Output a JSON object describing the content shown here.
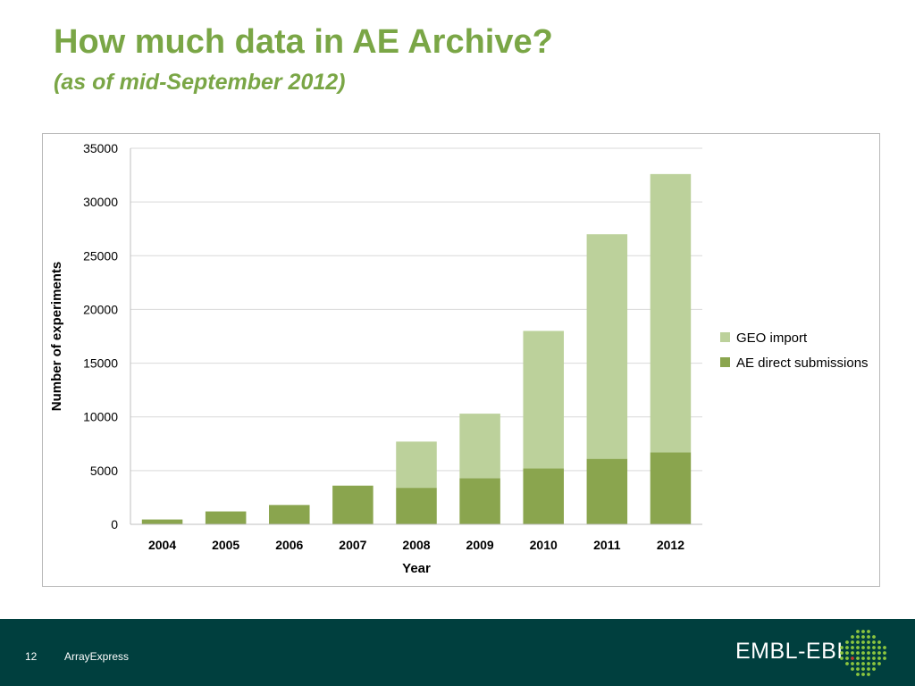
{
  "slide": {
    "title": "How much data in AE Archive?",
    "subtitle": "(as of mid-September 2012)"
  },
  "footer": {
    "page_number": "12",
    "label": "ArrayExpress",
    "logo_text": "EMBL-EBI",
    "background_color": "#003f3e"
  },
  "chart_data": {
    "type": "bar",
    "stacked": true,
    "title": "",
    "xlabel": "Year",
    "ylabel": "Number of experiments",
    "categories": [
      "2004",
      "2005",
      "2006",
      "2007",
      "2008",
      "2009",
      "2010",
      "2011",
      "2012"
    ],
    "ylim": [
      0,
      35000
    ],
    "yticks": [
      0,
      5000,
      10000,
      15000,
      20000,
      25000,
      30000,
      35000
    ],
    "grid": true,
    "legend_position": "right",
    "series": [
      {
        "name": "AE direct submissions",
        "color": "#8aa54e",
        "values": [
          450,
          1200,
          1800,
          3600,
          3400,
          4300,
          5200,
          6100,
          6700
        ]
      },
      {
        "name": "GEO import",
        "color": "#bcd19b",
        "values": [
          0,
          0,
          0,
          0,
          4300,
          6000,
          12800,
          20900,
          25900
        ]
      }
    ],
    "legend_order": [
      "GEO import",
      "AE direct submissions"
    ]
  }
}
